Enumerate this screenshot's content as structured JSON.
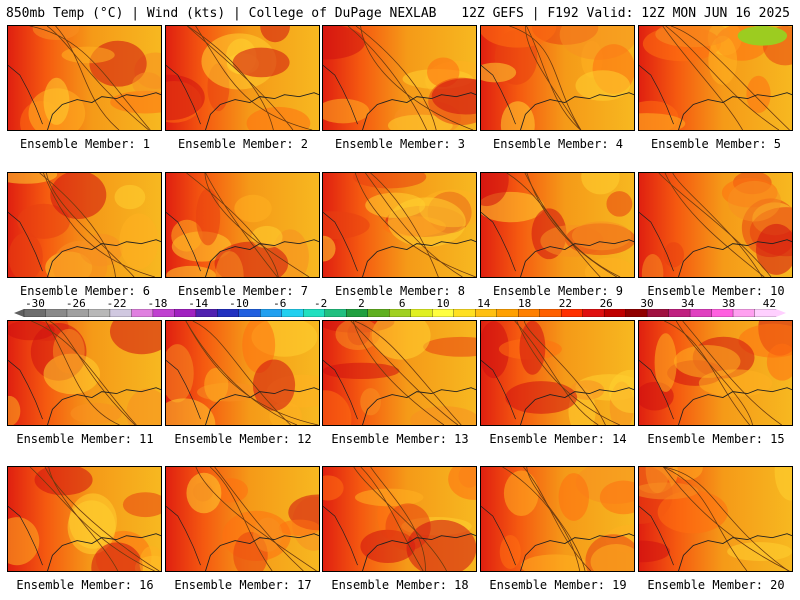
{
  "header": {
    "left": "850mb Temp (°C) | Wind (kts) | College of DuPage NEXLAB",
    "right": "12Z GEFS | F192 Valid: 12Z MON JUN 16 2025"
  },
  "members": [
    {
      "label": "Ensemble Member: 1"
    },
    {
      "label": "Ensemble Member: 2"
    },
    {
      "label": "Ensemble Member: 3"
    },
    {
      "label": "Ensemble Member: 4"
    },
    {
      "label": "Ensemble Member: 5"
    },
    {
      "label": "Ensemble Member: 6"
    },
    {
      "label": "Ensemble Member: 7"
    },
    {
      "label": "Ensemble Member: 8"
    },
    {
      "label": "Ensemble Member: 9"
    },
    {
      "label": "Ensemble Member: 10"
    },
    {
      "label": "Ensemble Member: 11"
    },
    {
      "label": "Ensemble Member: 12"
    },
    {
      "label": "Ensemble Member: 13"
    },
    {
      "label": "Ensemble Member: 14"
    },
    {
      "label": "Ensemble Member: 15"
    },
    {
      "label": "Ensemble Member: 16"
    },
    {
      "label": "Ensemble Member: 17"
    },
    {
      "label": "Ensemble Member: 18"
    },
    {
      "label": "Ensemble Member: 19"
    },
    {
      "label": "Ensemble Member: 20"
    }
  ],
  "colorbar": {
    "ticks": [
      "-30",
      "-26",
      "-22",
      "-18",
      "-14",
      "-10",
      "-6",
      "-2",
      "2",
      "6",
      "10",
      "14",
      "18",
      "22",
      "26",
      "30",
      "34",
      "38",
      "42"
    ],
    "colors": [
      "#6e6e6e",
      "#8a8a8a",
      "#a0a0a0",
      "#b8b8b8",
      "#d0c8e0",
      "#e080e0",
      "#c040d0",
      "#a020c0",
      "#5020b0",
      "#2030c0",
      "#2060e0",
      "#20a0f0",
      "#20d0f0",
      "#20e0c0",
      "#20c080",
      "#20a040",
      "#60b020",
      "#a0d020",
      "#e0f020",
      "#ffff40",
      "#ffe020",
      "#ffc010",
      "#ffa000",
      "#ff8000",
      "#ff6000",
      "#ff3000",
      "#e01010",
      "#c00000",
      "#900000",
      "#a01040",
      "#c02080",
      "#e040c0",
      "#ff60e0",
      "#ffa0f0",
      "#ffd0ff"
    ]
  }
}
